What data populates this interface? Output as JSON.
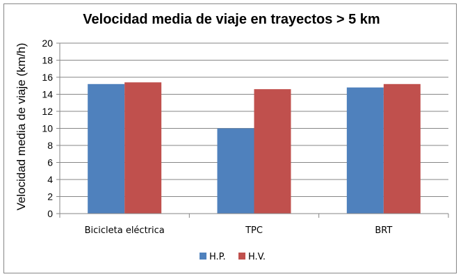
{
  "chart_data": {
    "type": "bar",
    "title": "Velocidad media de viaje en trayectos > 5 km",
    "xlabel": "",
    "ylabel": "Velocidad media de viaje (km/h)",
    "ylim": [
      0,
      20
    ],
    "yticks": [
      0,
      2,
      4,
      6,
      8,
      10,
      12,
      14,
      16,
      18,
      20
    ],
    "grid": true,
    "legend_position": "bottom",
    "categories": [
      "Bicicleta eléctrica",
      "TPC",
      "BRT"
    ],
    "series": [
      {
        "name": "H.P.",
        "color": "#4f81bd",
        "values": [
          15.2,
          10.0,
          14.8
        ]
      },
      {
        "name": "H.V.",
        "color": "#c0504d",
        "values": [
          15.4,
          14.6,
          15.2
        ]
      }
    ]
  }
}
